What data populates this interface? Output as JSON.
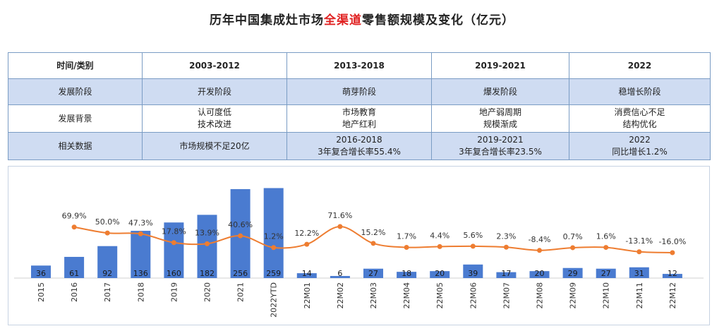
{
  "title": {
    "prefix": "历年中国集成灶市场",
    "highlight": "全渠道",
    "suffix": "零售额规模及变化（亿元）"
  },
  "colors": {
    "bar": "#4a7bd0",
    "line": "#ee7d31",
    "highlight": "#e02020",
    "table_header_border": "#7a9cc4",
    "table_blue_row": "#cfdcf2"
  },
  "table": {
    "headers": [
      "时间/类别",
      "2003-2012",
      "2013-2018",
      "2019-2021",
      "2022"
    ],
    "rows": [
      {
        "label": "发展阶段",
        "cells": [
          "开发阶段",
          "萌芽阶段",
          "爆发阶段",
          "稳增长阶段"
        ]
      },
      {
        "label": "发展背景",
        "cells": [
          [
            "认可度低",
            "技术改进"
          ],
          [
            "市场教育",
            "地产红利"
          ],
          [
            "地产弱周期",
            "规模渐成"
          ],
          [
            "消费信心不足",
            "结构优化"
          ]
        ]
      },
      {
        "label": "相关数据",
        "cells": [
          [
            "市场规模不足20亿"
          ],
          [
            "2016-2018",
            "3年复合增长率55.4%"
          ],
          [
            "2019-2021",
            "3年复合增长率23.5%"
          ],
          [
            "2022",
            "同比增长1.2%"
          ]
        ]
      }
    ]
  },
  "chart_data": {
    "type": "bar",
    "categories": [
      "2015",
      "2016",
      "2017",
      "2018",
      "2019",
      "2020",
      "2021",
      "2022YTD",
      "22M01",
      "22M02",
      "22M03",
      "22M04",
      "22M05",
      "22M06",
      "22M07",
      "22M08",
      "22M09",
      "22M10",
      "22M11",
      "22M12"
    ],
    "series": [
      {
        "type": "bar",
        "values": [
          36,
          61,
          92,
          136,
          160,
          182,
          256,
          259,
          14,
          6,
          27,
          18,
          20,
          39,
          17,
          20,
          29,
          27,
          31,
          12
        ]
      },
      {
        "type": "line",
        "values": [
          null,
          69.9,
          50.0,
          47.3,
          17.8,
          13.9,
          40.6,
          1.2,
          12.2,
          71.6,
          15.2,
          1.7,
          4.4,
          5.6,
          2.3,
          -8.4,
          0.7,
          1.6,
          -13.1,
          -16.0
        ],
        "labels": [
          "",
          "69.9%",
          "50.0%",
          "47.3%",
          "17.8%",
          "13.9%",
          "40.6%",
          "1.2%",
          "12.2%",
          "71.6%",
          "15.2%",
          "1.7%",
          "4.4%",
          "5.6%",
          "2.3%",
          "-8.4%",
          "0.7%",
          "1.6%",
          "-13.1%",
          "-16.0%"
        ]
      }
    ],
    "bar_labels": [
      "36",
      "61",
      "92",
      "136",
      "160",
      "182",
      "256",
      "259",
      "14",
      "6",
      "27",
      "18",
      "20",
      "39",
      "17",
      "20",
      "29",
      "27",
      "31",
      "12"
    ],
    "legend": "none",
    "grid": false
  }
}
